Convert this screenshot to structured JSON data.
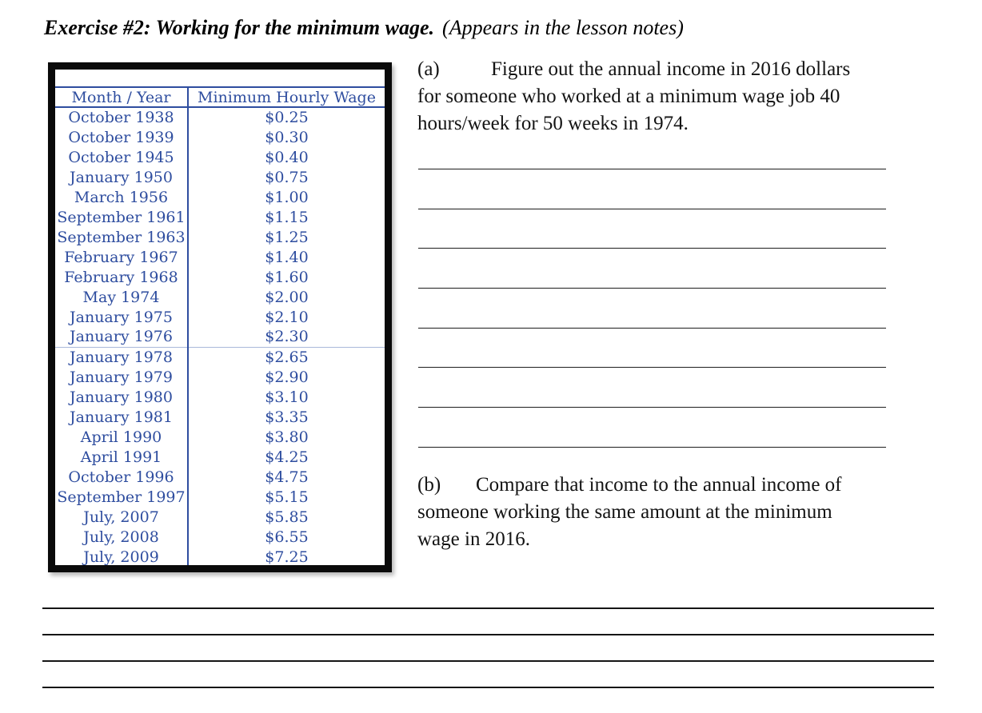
{
  "page": {
    "background": "#ffffff"
  },
  "header": {
    "title": "Exercise #2: Working for the minimum wage.",
    "note": "(Appears in the lesson notes)"
  },
  "wage_table": {
    "headers": [
      "Month / Year",
      "Minimum Hourly Wage"
    ],
    "rows": [
      [
        "October 1938",
        "$0.25"
      ],
      [
        "October 1939",
        "$0.30"
      ],
      [
        "October 1945",
        "$0.40"
      ],
      [
        "January 1950",
        "$0.75"
      ],
      [
        "March 1956",
        "$1.00"
      ],
      [
        "September 1961",
        "$1.15"
      ],
      [
        "September 1963",
        "$1.25"
      ],
      [
        "February 1967",
        "$1.40"
      ],
      [
        "February 1968",
        "$1.60"
      ],
      [
        "May 1974",
        "$2.00"
      ],
      [
        "January 1975",
        "$2.10"
      ],
      [
        "January 1976",
        "$2.30"
      ],
      [
        "January 1978",
        "$2.65"
      ],
      [
        "January 1979",
        "$2.90"
      ],
      [
        "January 1980",
        "$3.10"
      ],
      [
        "January 1981",
        "$3.35"
      ],
      [
        "April 1990",
        "$3.80"
      ],
      [
        "April 1991",
        "$4.25"
      ],
      [
        "October 1996",
        "$4.75"
      ],
      [
        "September 1997",
        "$5.15"
      ],
      [
        "July, 2007",
        "$5.85"
      ],
      [
        "July, 2008",
        "$6.55"
      ],
      [
        "July, 2009",
        "$7.25"
      ]
    ],
    "group_break_index": 12,
    "text_color": "#2e4d9f",
    "frame_color": "#0a0a0a"
  },
  "questions": {
    "a": {
      "label": "(a)",
      "lines": [
        "Figure out the annual income in 2016 dollars",
        "for someone who worked at a minimum wage job 40",
        "hours/week for 50 weeks in 1974."
      ]
    },
    "b": {
      "label": "(b)",
      "lines": [
        "Compare that income to the annual income of",
        "someone working the same amount at the minimum",
        "wage in 2016."
      ]
    }
  },
  "answer_area": {
    "question_a_line_count": 8,
    "footer_line_count": 4
  }
}
